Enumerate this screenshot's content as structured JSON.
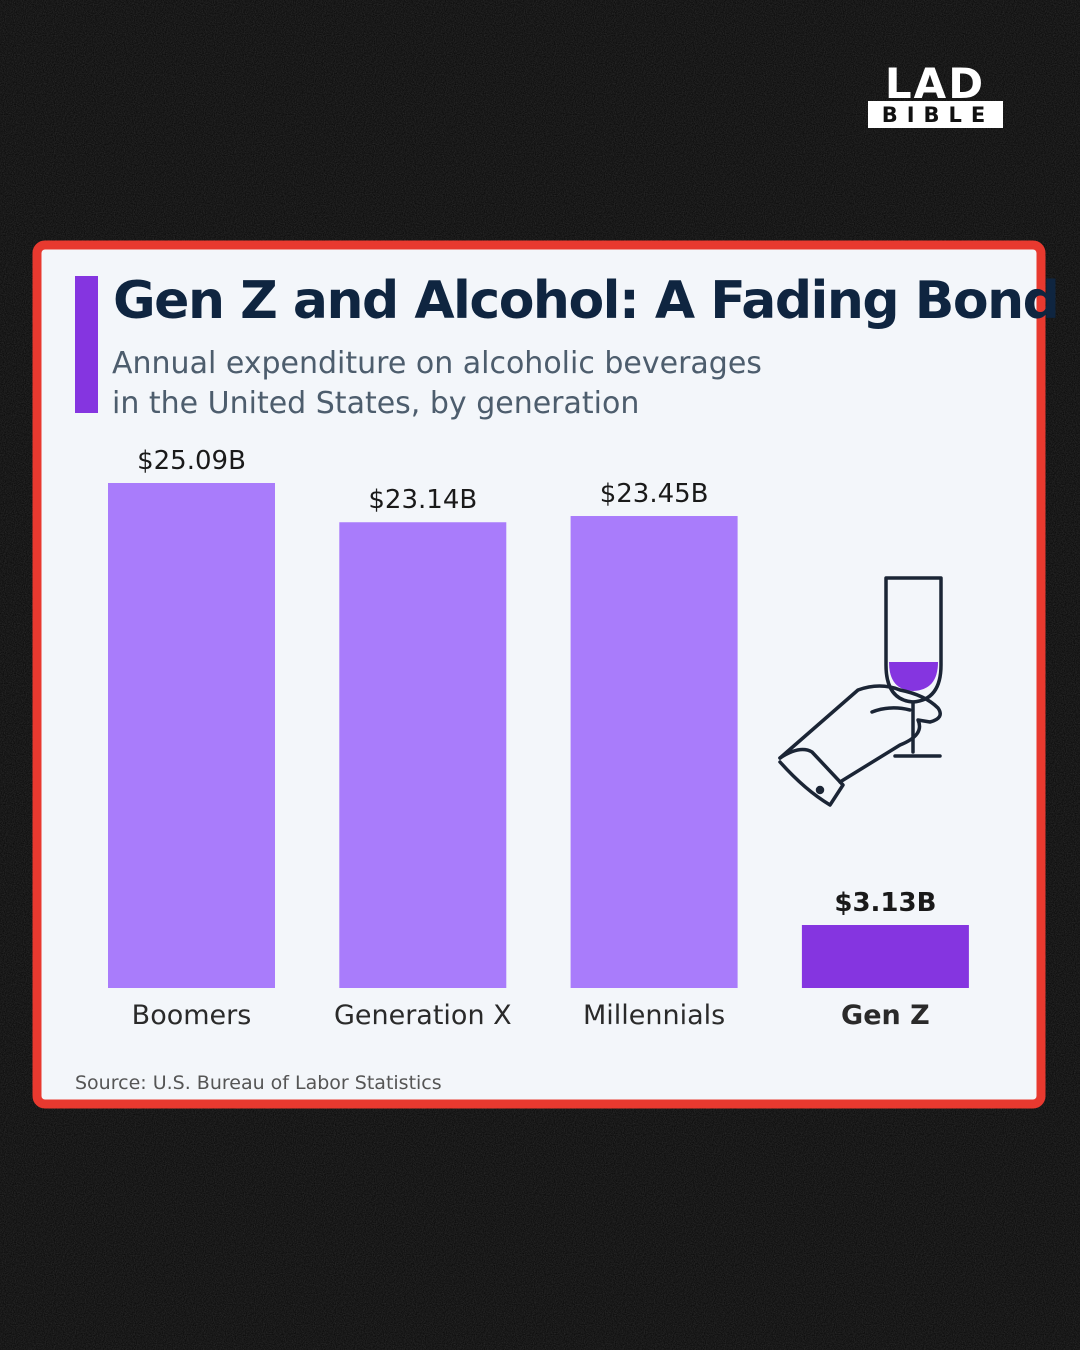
{
  "brand": {
    "line1": "LAD",
    "line2": "BIBLE"
  },
  "chart_data": {
    "type": "bar",
    "title": "Gen Z and Alcohol: A Fading Bond",
    "subtitle": [
      "Annual expenditure on alcoholic beverages",
      "in the United States, by generation"
    ],
    "categories": [
      "Boomers",
      "Generation X",
      "Millennials",
      "Gen Z"
    ],
    "values": [
      25.09,
      23.14,
      23.45,
      3.13
    ],
    "value_labels": [
      "$25.09B",
      "$23.14B",
      "$23.45B",
      "$3.13B"
    ],
    "colors": [
      "#a97cfb",
      "#a97cfb",
      "#a97cfb",
      "#8535e0"
    ],
    "source": "Source: U.S. Bureau of Labor Statistics"
  }
}
